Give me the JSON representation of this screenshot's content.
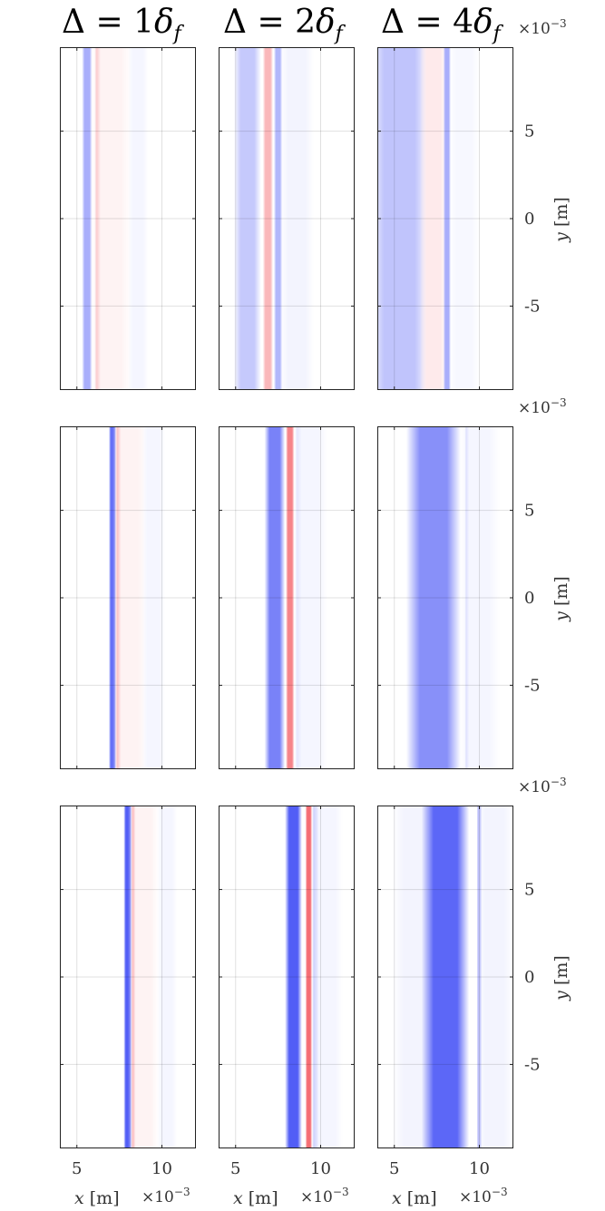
{
  "chart_data": {
    "type": "heatmap",
    "layout": {
      "rows": 3,
      "cols": 3
    },
    "columns": [
      {
        "title_prefix": "Δ = ",
        "title_value": "4",
        "title_symbol": "δ",
        "title_subscript": "f"
      },
      {
        "title_prefix": "Δ = ",
        "title_value": "2",
        "title_symbol": "δ",
        "title_subscript": "f"
      },
      {
        "title_prefix": "Δ = ",
        "title_value": "1",
        "title_symbol": "δ",
        "title_subscript": "f"
      }
    ],
    "xaxis": {
      "var": "x",
      "unit": "[m]",
      "multiplier": "×10",
      "exponent": "−3",
      "ticks": [
        5,
        10
      ],
      "tick_labels": [
        "5",
        "10"
      ],
      "range": [
        4.0,
        12.0
      ]
    },
    "yaxis": {
      "var": "y",
      "unit": "[m]",
      "multiplier": "×10",
      "exponent": "−3",
      "ticks": [
        5,
        0,
        -5
      ],
      "tick_labels": [
        "5",
        "0",
        "-5"
      ],
      "range": [
        -9.8,
        9.8
      ]
    },
    "grid": true,
    "colormap": {
      "negative": "#3f4cf5",
      "positive": "#f0303a",
      "zero": "#ffffff"
    },
    "panels": [
      {
        "row": 0,
        "col": 0,
        "bands": [
          {
            "x": 5.6,
            "w": 0.3,
            "v": -0.45
          },
          {
            "x": 6.3,
            "w": 0.25,
            "v": 0.55
          },
          {
            "x": 7.0,
            "w": 1.2,
            "v": 0.06
          },
          {
            "x": 8.6,
            "w": 0.6,
            "v": -0.05
          }
        ]
      },
      {
        "row": 0,
        "col": 1,
        "bands": [
          {
            "x": 5.7,
            "w": 0.8,
            "v": -0.3
          },
          {
            "x": 6.9,
            "w": 0.3,
            "v": 0.35
          },
          {
            "x": 7.5,
            "w": 0.25,
            "v": -0.4
          },
          {
            "x": 8.6,
            "w": 1.0,
            "v": -0.06
          }
        ]
      },
      {
        "row": 0,
        "col": 2,
        "bands": [
          {
            "x": 5.3,
            "w": 1.8,
            "v": -0.33
          },
          {
            "x": 7.3,
            "w": 0.8,
            "v": 0.1
          },
          {
            "x": 8.1,
            "w": 0.22,
            "v": -0.45
          },
          {
            "x": 9.1,
            "w": 0.9,
            "v": -0.04
          }
        ]
      },
      {
        "row": 1,
        "col": 0,
        "bands": [
          {
            "x": 7.1,
            "w": 0.22,
            "v": -0.8
          },
          {
            "x": 7.5,
            "w": 0.22,
            "v": 0.6
          },
          {
            "x": 8.1,
            "w": 1.0,
            "v": 0.06
          },
          {
            "x": 9.5,
            "w": 0.7,
            "v": -0.05
          }
        ]
      },
      {
        "row": 1,
        "col": 1,
        "bands": [
          {
            "x": 7.3,
            "w": 0.6,
            "v": -0.7
          },
          {
            "x": 8.2,
            "w": 0.25,
            "v": 0.6
          },
          {
            "x": 8.75,
            "w": 0.25,
            "v": -0.2
          },
          {
            "x": 9.4,
            "w": 1.0,
            "v": -0.05
          }
        ]
      },
      {
        "row": 1,
        "col": 2,
        "bands": [
          {
            "x": 7.3,
            "w": 1.6,
            "v": -0.62
          },
          {
            "x": 9.3,
            "w": 0.15,
            "v": -0.45
          },
          {
            "x": 10.0,
            "w": 1.2,
            "v": -0.05
          }
        ]
      },
      {
        "row": 2,
        "col": 0,
        "bands": [
          {
            "x": 8.0,
            "w": 0.25,
            "v": -0.9
          },
          {
            "x": 8.4,
            "w": 0.2,
            "v": 0.85
          },
          {
            "x": 8.9,
            "w": 0.9,
            "v": 0.06
          },
          {
            "x": 10.3,
            "w": 0.6,
            "v": -0.05
          }
        ]
      },
      {
        "row": 2,
        "col": 1,
        "bands": [
          {
            "x": 8.4,
            "w": 0.5,
            "v": -0.9
          },
          {
            "x": 9.3,
            "w": 0.2,
            "v": 0.7
          },
          {
            "x": 9.7,
            "w": 0.2,
            "v": -0.3
          },
          {
            "x": 10.4,
            "w": 0.9,
            "v": -0.05
          }
        ]
      },
      {
        "row": 2,
        "col": 2,
        "bands": [
          {
            "x": 6.2,
            "w": 1.3,
            "v": -0.06
          },
          {
            "x": 8.0,
            "w": 1.4,
            "v": -0.85
          },
          {
            "x": 10.0,
            "w": 0.15,
            "v": -0.45
          },
          {
            "x": 10.9,
            "w": 1.1,
            "v": -0.06
          }
        ]
      }
    ]
  }
}
